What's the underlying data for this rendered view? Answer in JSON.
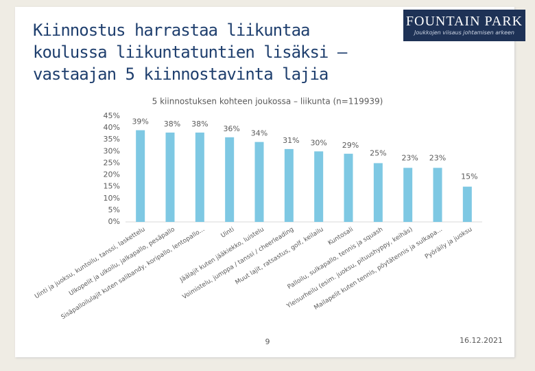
{
  "slide": {
    "title": "Kiinnostus harrastaa liikuntaa koulussa liikuntatuntien lisäksi – vastaajan 5 kiinnostavinta lajia",
    "logo_name": "FOUNTAIN PARK",
    "logo_tagline": "Joukkojen viisaus johtamisen arkeen",
    "page_number": "9",
    "date": "16.12.2021"
  },
  "chart_data": {
    "type": "bar",
    "title": "5 kiinnostuksen kohteen joukossa – liikunta (n=119939)",
    "categories": [
      "Uinti ja juoksu, kuntoilu, tanssi, laskettelu",
      "Ulkopelit ja ulkoilu, jalkapallo, pesäpallo",
      "Sisäpalloilulajit kuten salibandy, koripallo, lentopallo...",
      "Uinti",
      "Jäälajit kuten jääkiekko, luistelu",
      "Voimistelu, jumppa / tanssi / cheerleading",
      "Muut lajit, ratsastus, golf, keilailu",
      "Kuntosali",
      "Palloilu, sulkapallo, tennis ja squash",
      "Yleisurheilu (esim. juoksu, pituushyppy, keihäs)",
      "Mailapelit kuten tennis, pöytätennis ja sulkapa...",
      "Pyöräily ja juoksu"
    ],
    "values": [
      39,
      38,
      38,
      36,
      34,
      31,
      30,
      29,
      25,
      23,
      23,
      15
    ],
    "value_labels": [
      "39%",
      "38%",
      "38%",
      "36%",
      "34%",
      "31%",
      "30%",
      "29%",
      "25%",
      "23%",
      "23%",
      "15%"
    ],
    "color": "#7ec8e3",
    "ylim": [
      0,
      45
    ],
    "yticks": [
      {
        "value": 0,
        "label": "0%"
      },
      {
        "value": 5,
        "label": "5%"
      },
      {
        "value": 10,
        "label": "10%"
      },
      {
        "value": 15,
        "label": "15%"
      },
      {
        "value": 20,
        "label": "20%"
      },
      {
        "value": 25,
        "label": "25%"
      },
      {
        "value": 30,
        "label": "30%"
      },
      {
        "value": 35,
        "label": "35%"
      },
      {
        "value": 40,
        "label": "40%"
      },
      {
        "value": 45,
        "label": "45%"
      }
    ],
    "grid": false
  }
}
